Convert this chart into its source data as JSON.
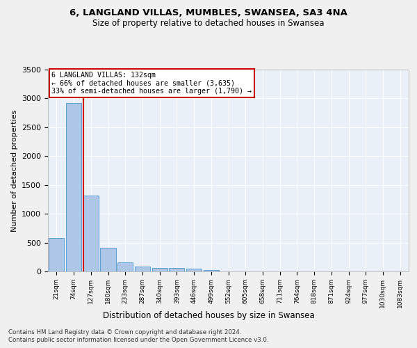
{
  "title1": "6, LANGLAND VILLAS, MUMBLES, SWANSEA, SA3 4NA",
  "title2": "Size of property relative to detached houses in Swansea",
  "xlabel": "Distribution of detached houses by size in Swansea",
  "ylabel": "Number of detached properties",
  "bar_labels": [
    "21sqm",
    "74sqm",
    "127sqm",
    "180sqm",
    "233sqm",
    "287sqm",
    "340sqm",
    "393sqm",
    "446sqm",
    "499sqm",
    "552sqm",
    "605sqm",
    "658sqm",
    "711sqm",
    "764sqm",
    "818sqm",
    "871sqm",
    "924sqm",
    "977sqm",
    "1030sqm",
    "1083sqm"
  ],
  "bar_values": [
    575,
    2920,
    1320,
    415,
    155,
    80,
    60,
    55,
    45,
    30,
    5,
    2,
    1,
    0,
    0,
    0,
    0,
    0,
    0,
    0,
    0
  ],
  "bar_color": "#aec6e8",
  "bar_edgecolor": "#5a9fd4",
  "background_color": "#eaf0f8",
  "grid_color": "#ffffff",
  "fig_color": "#f0f0f0",
  "annotation_box_text": "6 LANGLAND VILLAS: 132sqm\n← 66% of detached houses are smaller (3,635)\n33% of semi-detached houses are larger (1,790) →",
  "annotation_box_color": "#cc0000",
  "ylim": [
    0,
    3500
  ],
  "yticks": [
    0,
    500,
    1000,
    1500,
    2000,
    2500,
    3000,
    3500
  ],
  "footnote1": "Contains HM Land Registry data © Crown copyright and database right 2024.",
  "footnote2": "Contains public sector information licensed under the Open Government Licence v3.0."
}
